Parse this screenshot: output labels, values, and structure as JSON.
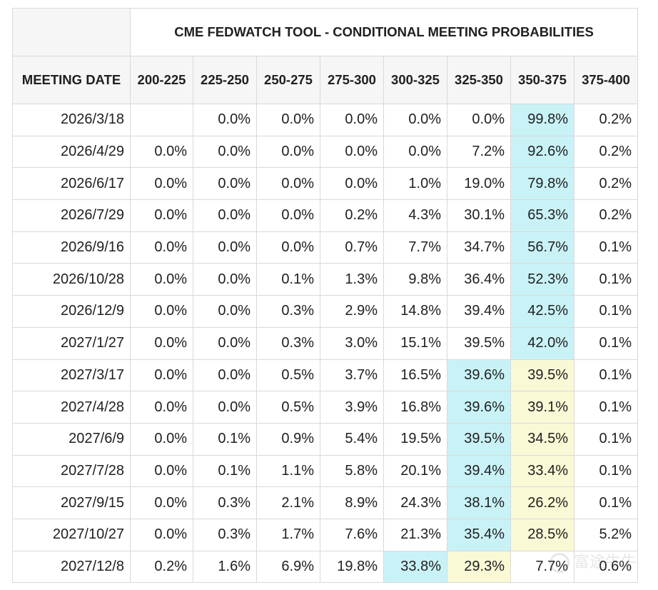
{
  "chart_data": {
    "type": "table",
    "title": "CME FEDWATCH TOOL - CONDITIONAL MEETING PROBABILITIES",
    "row_header_label": "MEETING DATE",
    "columns": [
      "200-225",
      "225-250",
      "250-275",
      "275-300",
      "300-325",
      "325-350",
      "350-375",
      "375-400"
    ],
    "rows": [
      {
        "date": "2026/3/18",
        "values": [
          "",
          "0.0%",
          "0.0%",
          "0.0%",
          "0.0%",
          "0.0%",
          "99.8%",
          "0.2%"
        ],
        "highlight": {
          "6": "blue"
        }
      },
      {
        "date": "2026/4/29",
        "values": [
          "0.0%",
          "0.0%",
          "0.0%",
          "0.0%",
          "0.0%",
          "7.2%",
          "92.6%",
          "0.2%"
        ],
        "highlight": {
          "6": "blue"
        }
      },
      {
        "date": "2026/6/17",
        "values": [
          "0.0%",
          "0.0%",
          "0.0%",
          "0.0%",
          "1.0%",
          "19.0%",
          "79.8%",
          "0.2%"
        ],
        "highlight": {
          "6": "blue"
        }
      },
      {
        "date": "2026/7/29",
        "values": [
          "0.0%",
          "0.0%",
          "0.0%",
          "0.2%",
          "4.3%",
          "30.1%",
          "65.3%",
          "0.2%"
        ],
        "highlight": {
          "6": "blue"
        }
      },
      {
        "date": "2026/9/16",
        "values": [
          "0.0%",
          "0.0%",
          "0.0%",
          "0.7%",
          "7.7%",
          "34.7%",
          "56.7%",
          "0.1%"
        ],
        "highlight": {
          "6": "blue"
        }
      },
      {
        "date": "2026/10/28",
        "values": [
          "0.0%",
          "0.0%",
          "0.1%",
          "1.3%",
          "9.8%",
          "36.4%",
          "52.3%",
          "0.1%"
        ],
        "highlight": {
          "6": "blue"
        }
      },
      {
        "date": "2026/12/9",
        "values": [
          "0.0%",
          "0.0%",
          "0.3%",
          "2.9%",
          "14.8%",
          "39.4%",
          "42.5%",
          "0.1%"
        ],
        "highlight": {
          "6": "blue"
        }
      },
      {
        "date": "2027/1/27",
        "values": [
          "0.0%",
          "0.0%",
          "0.3%",
          "3.0%",
          "15.1%",
          "39.5%",
          "42.0%",
          "0.1%"
        ],
        "highlight": {
          "6": "blue"
        }
      },
      {
        "date": "2027/3/17",
        "values": [
          "0.0%",
          "0.0%",
          "0.5%",
          "3.7%",
          "16.5%",
          "39.6%",
          "39.5%",
          "0.1%"
        ],
        "highlight": {
          "5": "blue",
          "6": "yellow"
        }
      },
      {
        "date": "2027/4/28",
        "values": [
          "0.0%",
          "0.0%",
          "0.5%",
          "3.9%",
          "16.8%",
          "39.6%",
          "39.1%",
          "0.1%"
        ],
        "highlight": {
          "5": "blue",
          "6": "yellow"
        }
      },
      {
        "date": "2027/6/9",
        "values": [
          "0.0%",
          "0.1%",
          "0.9%",
          "5.4%",
          "19.5%",
          "39.5%",
          "34.5%",
          "0.1%"
        ],
        "highlight": {
          "5": "blue",
          "6": "yellow"
        }
      },
      {
        "date": "2027/7/28",
        "values": [
          "0.0%",
          "0.1%",
          "1.1%",
          "5.8%",
          "20.1%",
          "39.4%",
          "33.4%",
          "0.1%"
        ],
        "highlight": {
          "5": "blue",
          "6": "yellow"
        }
      },
      {
        "date": "2027/9/15",
        "values": [
          "0.0%",
          "0.3%",
          "2.1%",
          "8.9%",
          "24.3%",
          "38.1%",
          "26.2%",
          "0.1%"
        ],
        "highlight": {
          "5": "blue",
          "6": "yellow"
        }
      },
      {
        "date": "2027/10/27",
        "values": [
          "0.0%",
          "0.3%",
          "1.7%",
          "7.6%",
          "21.3%",
          "35.4%",
          "28.5%",
          "5.2%"
        ],
        "highlight": {
          "5": "blue",
          "6": "yellow"
        }
      },
      {
        "date": "2027/12/8",
        "values": [
          "0.2%",
          "1.6%",
          "6.9%",
          "19.8%",
          "33.8%",
          "29.3%",
          "7.7%",
          "0.6%"
        ],
        "highlight": {
          "4": "blue",
          "5": "yellow"
        }
      }
    ]
  },
  "colors": {
    "highlight_blue": "#c9f2f7",
    "highlight_yellow": "#f9f9d6",
    "header_bg": "#f6f6f6",
    "border": "#d9d9d9"
  },
  "watermark": {
    "icon": "watermark-logo-icon",
    "text": "富途牛牛"
  }
}
